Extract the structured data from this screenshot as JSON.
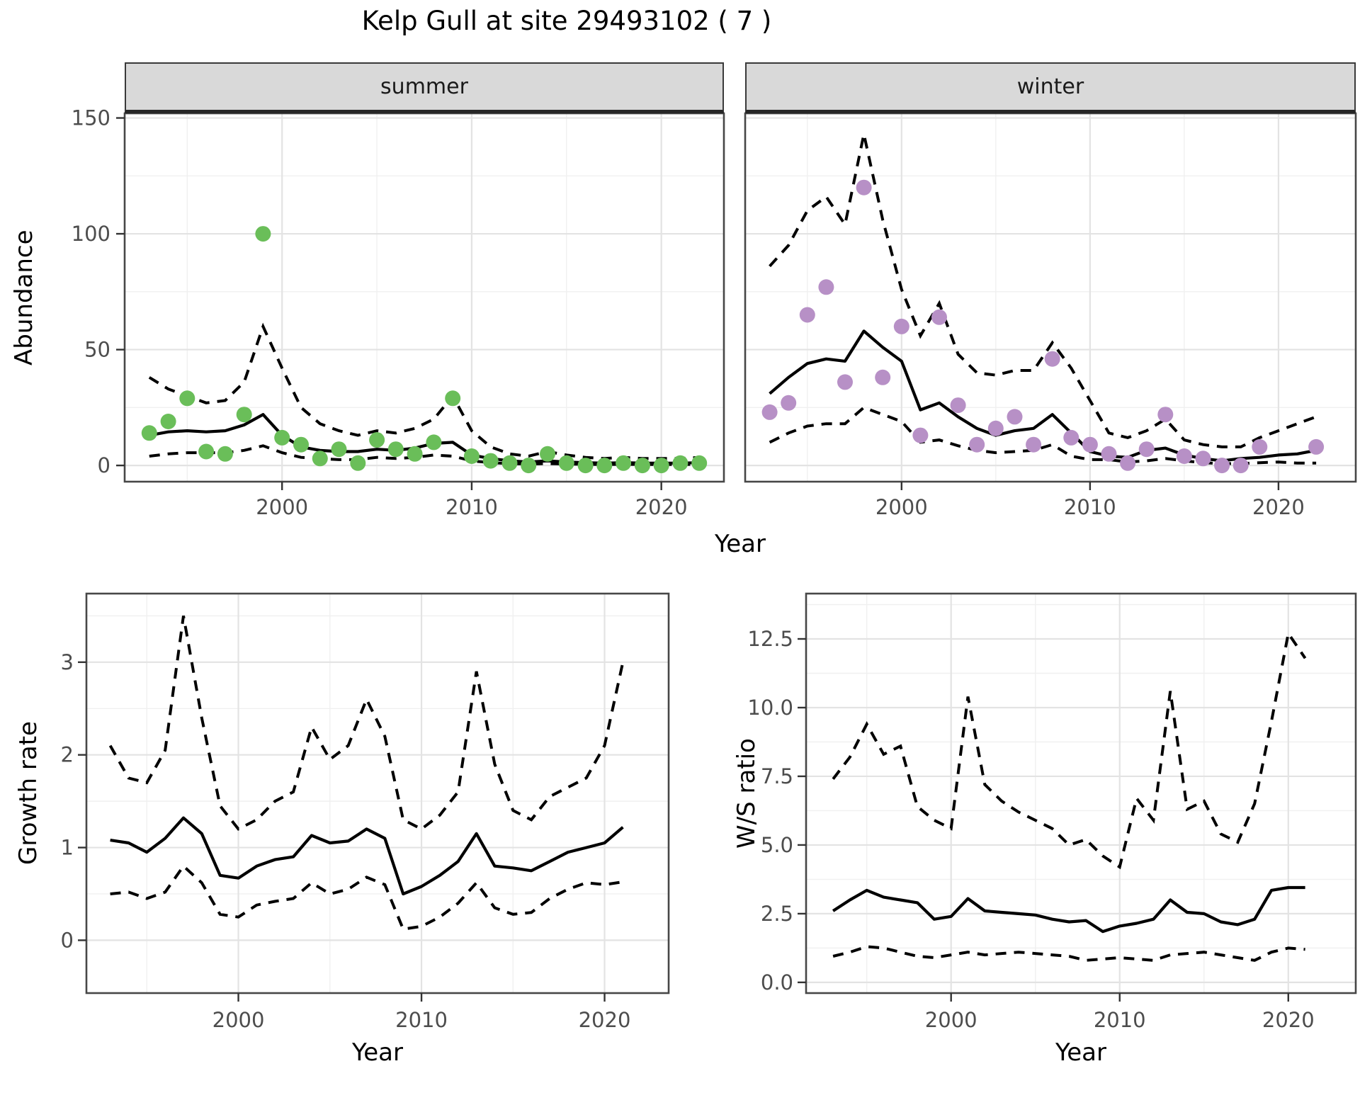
{
  "title": "Kelp Gull at site 29493102 ( 7 )",
  "labels": {
    "abundance": "Abundance",
    "year": "Year",
    "growth_rate": "Growth rate",
    "ws_ratio": "W/S ratio"
  },
  "colors": {
    "summer_point": "#6abe59",
    "winter_point": "#b790c6",
    "line": "#000000",
    "grid_major": "#e3e3e3",
    "grid_minor": "#f0f0f0",
    "panel_border": "#474747",
    "strip_background": "#d9d9d9",
    "tick_text": "#4d4d4d",
    "tick_mark": "#333333"
  },
  "chart_data": [
    {
      "type": "scatter",
      "title": "summer",
      "xlabel": "Year",
      "ylabel": "Abundance",
      "xlim": [
        1991.7,
        2023.3
      ],
      "ylim": [
        -7,
        152
      ],
      "x_ticks": [
        "2000",
        "2010",
        "2020"
      ],
      "x_grid_minor": [
        1995,
        2005,
        2015
      ],
      "y_ticks": [
        "0",
        "50",
        "100",
        "150"
      ],
      "y_grid_minor": [
        25,
        75,
        125
      ],
      "grid": true,
      "legend": "none",
      "point_color": "#6abe59",
      "years": [
        1993,
        1994,
        1995,
        1996,
        1997,
        1998,
        1999,
        2000,
        2001,
        2002,
        2003,
        2004,
        2005,
        2006,
        2007,
        2008,
        2009,
        2010,
        2011,
        2012,
        2013,
        2014,
        2015,
        2016,
        2017,
        2018,
        2019,
        2020,
        2021,
        2022
      ],
      "observed": [
        14,
        19,
        29,
        6,
        5,
        22,
        100,
        12,
        9,
        3,
        7,
        1,
        11,
        7,
        5,
        10,
        29,
        4,
        2,
        1,
        0,
        5,
        1,
        0,
        0,
        1,
        0,
        0,
        1,
        1
      ],
      "fit": [
        13,
        14.5,
        15,
        14.5,
        15,
        17.5,
        22,
        13,
        8,
        6.5,
        6,
        6,
        7,
        6.5,
        7.5,
        9.5,
        10,
        4.5,
        3,
        2,
        1.5,
        2,
        1.5,
        1.2,
        1,
        1.2,
        1,
        1,
        1,
        1.2
      ],
      "upper_ci": [
        38,
        33,
        30,
        27,
        28,
        36,
        60,
        42,
        25,
        18,
        15,
        13,
        15,
        14,
        16,
        20,
        30,
        15,
        8,
        5,
        4,
        6,
        4.5,
        3.5,
        3,
        3.5,
        3,
        3,
        3,
        3.5
      ],
      "lower_ci": [
        4,
        5,
        5.5,
        5.5,
        5.5,
        6.5,
        8.5,
        5.5,
        3.5,
        3,
        2.5,
        2.5,
        3.5,
        3,
        3.5,
        4.5,
        4,
        2,
        1.2,
        0.8,
        0.6,
        0.8,
        0.6,
        0.5,
        0.4,
        0.5,
        0.4,
        0.4,
        0.4,
        0.5
      ]
    },
    {
      "type": "scatter",
      "title": "winter",
      "xlabel": "Year",
      "ylabel": "Abundance",
      "xlim": [
        1991.7,
        2024.1
      ],
      "ylim": [
        -7,
        152
      ],
      "x_ticks": [
        "2000",
        "2010",
        "2020"
      ],
      "x_grid_minor": [
        1995,
        2005,
        2015
      ],
      "y_ticks": [
        "0",
        "50",
        "100",
        "150"
      ],
      "y_grid_minor": [
        25,
        75,
        125
      ],
      "grid": true,
      "legend": "none",
      "point_color": "#b790c6",
      "years": [
        1993,
        1994,
        1995,
        1996,
        1997,
        1998,
        1999,
        2000,
        2001,
        2002,
        2003,
        2004,
        2005,
        2006,
        2007,
        2008,
        2009,
        2010,
        2011,
        2012,
        2013,
        2014,
        2015,
        2016,
        2017,
        2018,
        2019,
        2020,
        2021,
        2022
      ],
      "observed": [
        23,
        27,
        65,
        77,
        36,
        120,
        38,
        60,
        13,
        64,
        26,
        9,
        16,
        21,
        9,
        46,
        12,
        9,
        5,
        1,
        7,
        22,
        4,
        3,
        0,
        0,
        8,
        null,
        null,
        8
      ],
      "fit": [
        31,
        38,
        44,
        46,
        45,
        58,
        51,
        45,
        24,
        27,
        21,
        16,
        13,
        15,
        16,
        22,
        14,
        6,
        4,
        3.5,
        6.5,
        7.5,
        4.5,
        3,
        2,
        3,
        3.5,
        4.5,
        5,
        6.5
      ],
      "upper_ci": [
        86,
        95,
        110,
        116,
        104,
        143,
        106,
        76,
        56,
        70,
        48,
        40,
        39,
        41,
        41,
        53,
        42,
        28,
        14,
        12,
        15,
        20,
        11,
        9,
        8,
        8,
        12,
        15,
        18,
        21
      ],
      "lower_ci": [
        10,
        14,
        17,
        18,
        18,
        25,
        22,
        19,
        10,
        11,
        8.5,
        6.5,
        5.5,
        6,
        6.5,
        9,
        4,
        2.5,
        2.5,
        1.5,
        2,
        3,
        2,
        1.2,
        0.8,
        0.8,
        1.2,
        1.5,
        1,
        1
      ]
    },
    {
      "type": "line",
      "title": "",
      "xlabel": "Year",
      "ylabel": "Growth rate",
      "xlim": [
        1991.7,
        2023.5
      ],
      "ylim": [
        -0.57,
        3.74
      ],
      "x_ticks": [
        "2000",
        "2010",
        "2020"
      ],
      "x_grid_minor": [
        1995,
        2005,
        2015
      ],
      "y_ticks": [
        "0",
        "1",
        "2",
        "3"
      ],
      "y_grid_minor": [
        0.5,
        1.5,
        2.5,
        3.5
      ],
      "grid": true,
      "legend": "none",
      "years": [
        1993,
        1994,
        1995,
        1996,
        1997,
        1998,
        1999,
        2000,
        2001,
        2002,
        2003,
        2004,
        2005,
        2006,
        2007,
        2008,
        2009,
        2010,
        2011,
        2012,
        2013,
        2014,
        2015,
        2016,
        2017,
        2018,
        2019,
        2020,
        2021
      ],
      "fit": [
        1.08,
        1.05,
        0.95,
        1.1,
        1.32,
        1.15,
        0.7,
        0.67,
        0.8,
        0.87,
        0.9,
        1.13,
        1.05,
        1.07,
        1.2,
        1.1,
        0.5,
        0.58,
        0.7,
        0.85,
        1.15,
        0.8,
        0.78,
        0.75,
        0.85,
        0.95,
        1.0,
        1.05,
        1.22
      ],
      "upper_ci": [
        2.1,
        1.75,
        1.7,
        2.05,
        3.5,
        2.4,
        1.45,
        1.2,
        1.3,
        1.5,
        1.6,
        2.3,
        1.95,
        2.1,
        2.6,
        2.2,
        1.3,
        1.2,
        1.35,
        1.6,
        2.9,
        1.9,
        1.4,
        1.3,
        1.55,
        1.65,
        1.75,
        2.1,
        3.0
      ],
      "lower_ci": [
        0.5,
        0.52,
        0.45,
        0.52,
        0.8,
        0.62,
        0.28,
        0.25,
        0.38,
        0.42,
        0.45,
        0.62,
        0.5,
        0.55,
        0.68,
        0.6,
        0.12,
        0.15,
        0.25,
        0.4,
        0.62,
        0.35,
        0.28,
        0.3,
        0.45,
        0.55,
        0.62,
        0.6,
        0.63
      ]
    },
    {
      "type": "line",
      "title": "",
      "xlabel": "Year",
      "ylabel": "W/S ratio",
      "xlim": [
        1991.4,
        2024.0
      ],
      "ylim": [
        -0.39,
        14.15
      ],
      "x_ticks": [
        "2000",
        "2010",
        "2020"
      ],
      "x_grid_minor": [
        1995,
        2005,
        2015
      ],
      "y_ticks": [
        "0.0",
        "2.5",
        "5.0",
        "7.5",
        "10.0",
        "12.5"
      ],
      "y_grid_minor": [
        1.25,
        3.75,
        6.25,
        8.75,
        11.25,
        13.75
      ],
      "grid": true,
      "legend": "none",
      "years": [
        1993,
        1994,
        1995,
        1996,
        1997,
        1998,
        1999,
        2000,
        2001,
        2002,
        2003,
        2004,
        2005,
        2006,
        2007,
        2008,
        2009,
        2010,
        2011,
        2012,
        2013,
        2014,
        2015,
        2016,
        2017,
        2018,
        2019,
        2020,
        2021
      ],
      "fit": [
        2.6,
        3.0,
        3.35,
        3.1,
        3.0,
        2.9,
        2.3,
        2.4,
        3.05,
        2.6,
        2.55,
        2.5,
        2.45,
        2.3,
        2.2,
        2.25,
        1.85,
        2.05,
        2.15,
        2.3,
        3.0,
        2.55,
        2.5,
        2.2,
        2.1,
        2.3,
        3.35,
        3.45,
        3.45
      ],
      "upper_ci": [
        7.4,
        8.2,
        9.4,
        8.3,
        8.6,
        6.4,
        5.9,
        5.6,
        10.4,
        7.2,
        6.6,
        6.2,
        5.9,
        5.6,
        5.0,
        5.2,
        4.6,
        4.2,
        6.7,
        5.9,
        10.6,
        6.3,
        6.6,
        5.4,
        5.1,
        6.5,
        9.5,
        12.7,
        11.8
      ],
      "lower_ci": [
        0.95,
        1.1,
        1.3,
        1.25,
        1.1,
        0.95,
        0.9,
        1.0,
        1.1,
        1.0,
        1.05,
        1.1,
        1.05,
        1.0,
        0.95,
        0.8,
        0.85,
        0.9,
        0.85,
        0.8,
        1.0,
        1.05,
        1.1,
        1.0,
        0.9,
        0.8,
        1.1,
        1.25,
        1.2
      ]
    }
  ]
}
